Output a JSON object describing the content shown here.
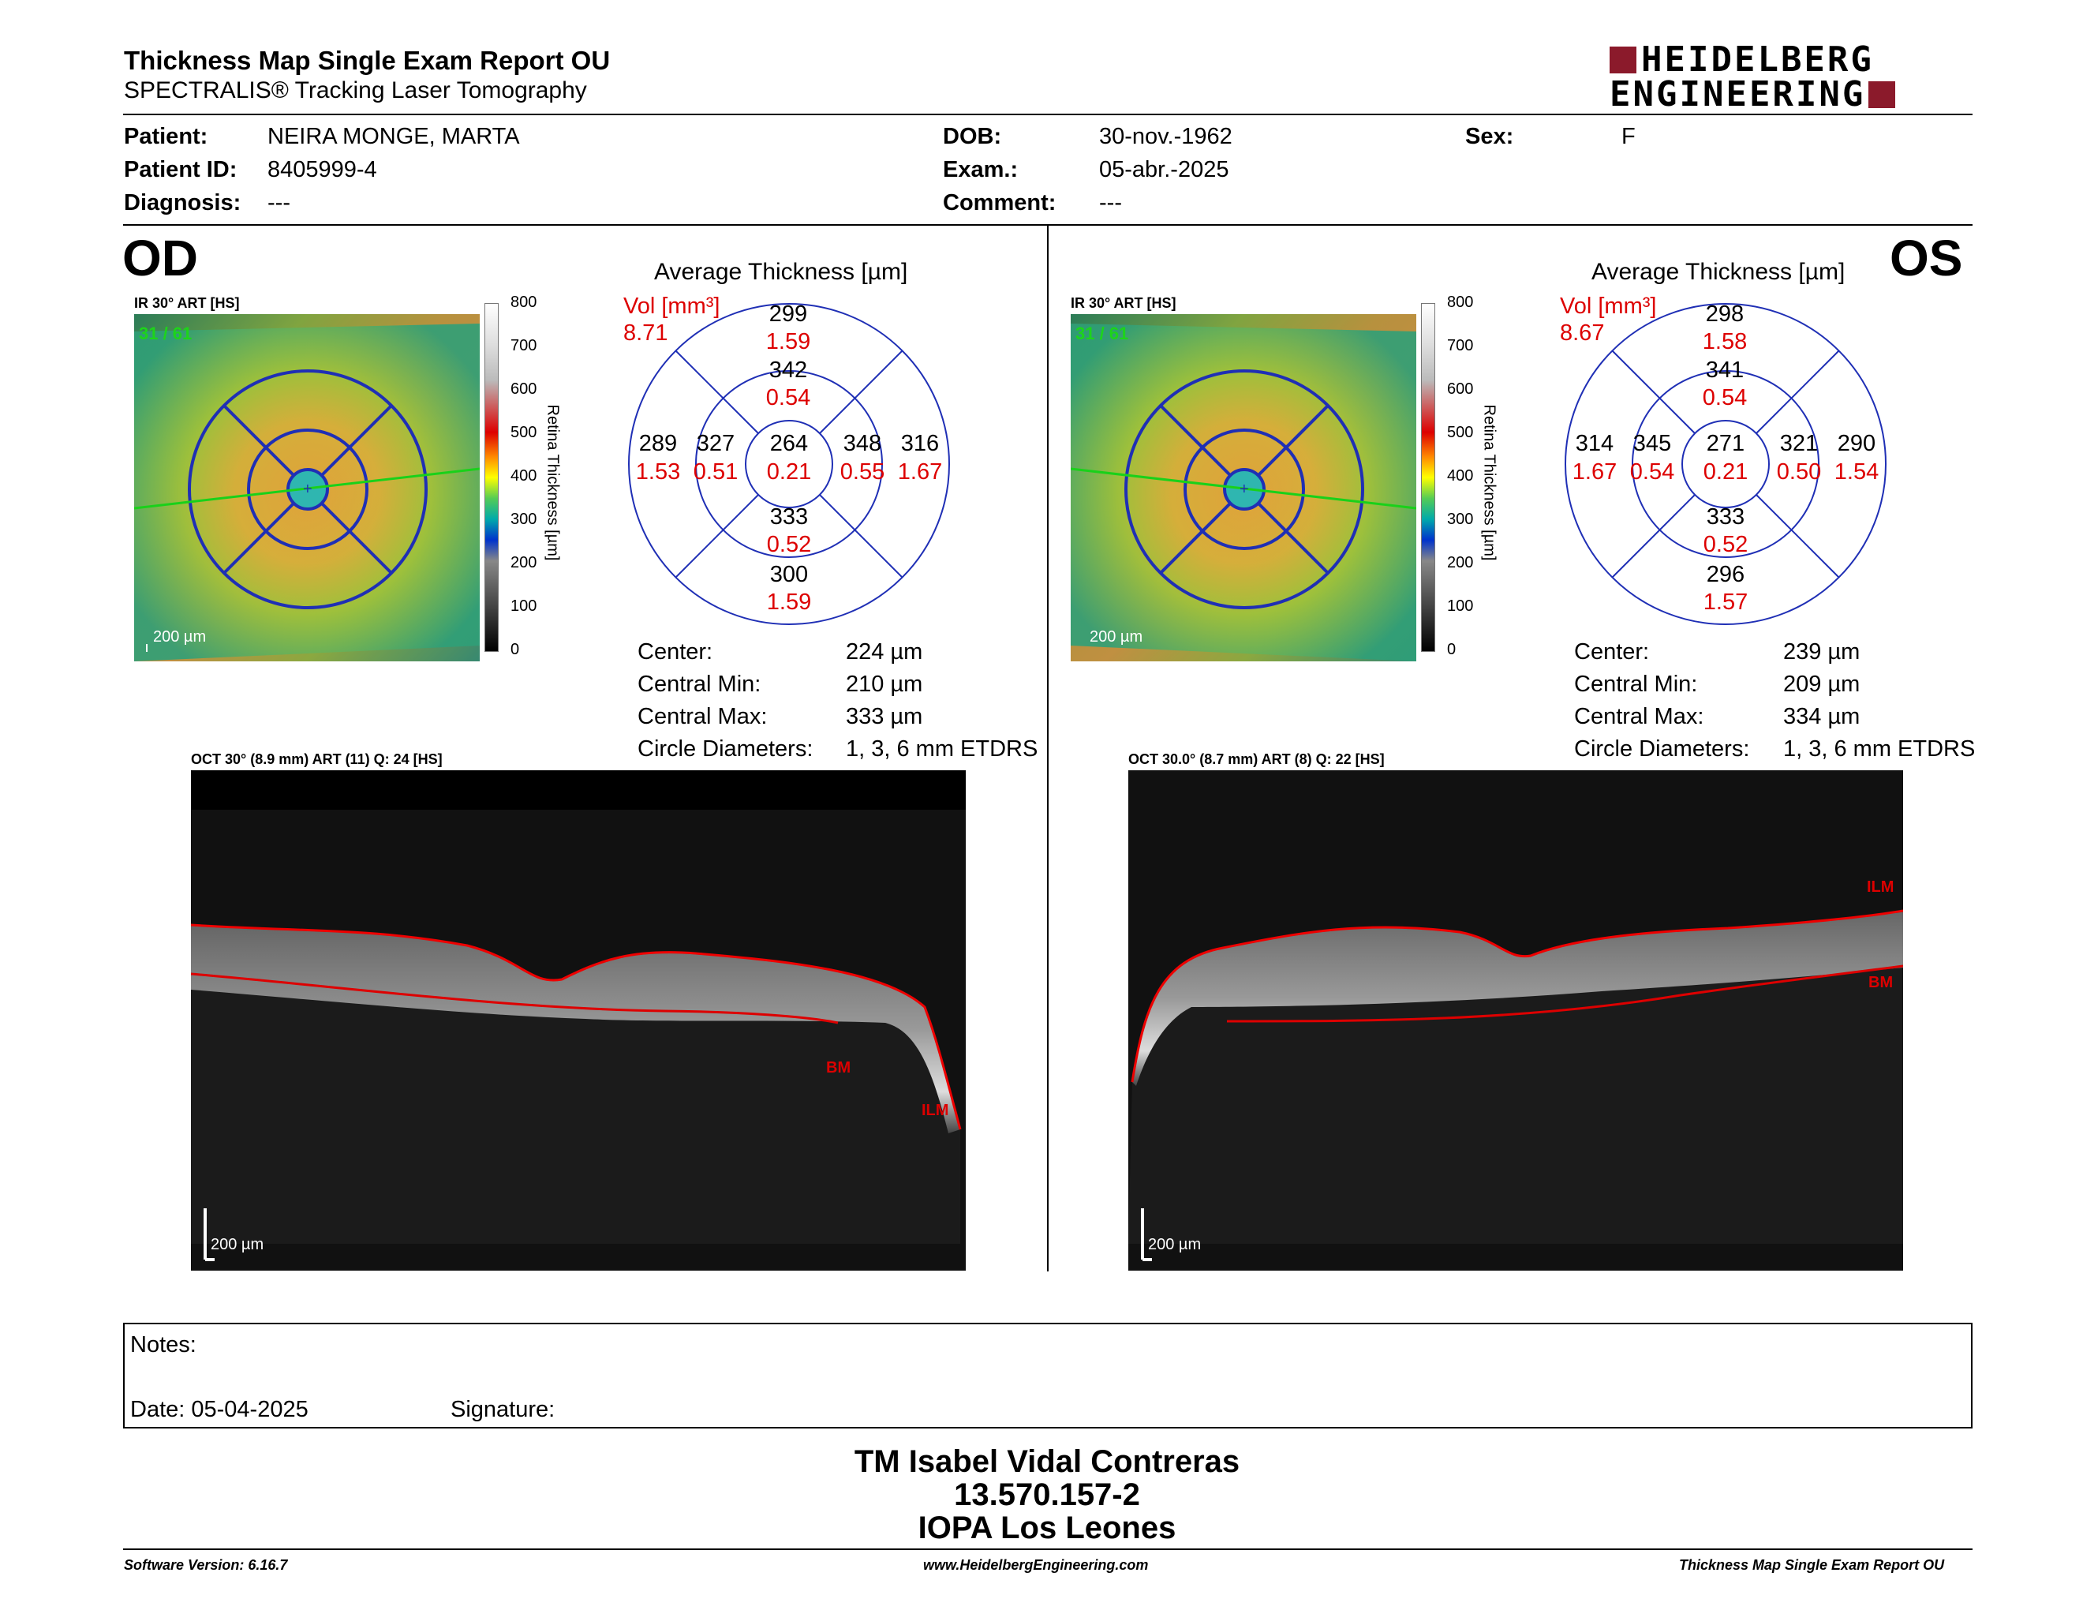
{
  "report": {
    "title": "Thickness Map Single Exam Report OU",
    "subtitle": "SPECTRALIS® Tracking Laser Tomography",
    "brand_line1": "HEIDELBERG",
    "brand_line2": "ENGINEERING",
    "brand_color": "#8b1a2b"
  },
  "patient": {
    "patient_label": "Patient:",
    "patient_value": "NEIRA MONGE, MARTA",
    "id_label": "Patient ID:",
    "id_value": "8405999-4",
    "diag_label": "Diagnosis:",
    "diag_value": "---",
    "dob_label": "DOB:",
    "dob_value": "30-nov.-1962",
    "exam_label": "Exam.:",
    "exam_value": "05-abr.-2025",
    "comment_label": "Comment:",
    "comment_value": "---",
    "sex_label": "Sex:",
    "sex_value": "F"
  },
  "od": {
    "eye": "OD",
    "ir_label": "IR 30° ART [HS]",
    "frame": "31 / 61",
    "scale": "200 µm",
    "avg_title": "Average Thickness [µm]",
    "vol_label": "Vol [mm³]",
    "vol_total": "8.71",
    "sectors": {
      "sup_outer": "299",
      "sup_outer_v": "1.59",
      "sup_inner": "342",
      "sup_inner_v": "0.54",
      "temp_outer": "289",
      "temp_outer_v": "1.53",
      "temp_inner": "327",
      "temp_inner_v": "0.51",
      "center": "264",
      "center_v": "0.21",
      "nas_inner": "348",
      "nas_inner_v": "0.55",
      "nas_outer": "316",
      "nas_outer_v": "1.67",
      "inf_inner": "333",
      "inf_inner_v": "0.52",
      "inf_outer": "300",
      "inf_outer_v": "1.59"
    },
    "stats": {
      "center_label": "Center:",
      "center_value": "224 µm",
      "min_label": "Central Min:",
      "min_value": "210 µm",
      "max_label": "Central Max:",
      "max_value": "333 µm",
      "diam_label": "Circle Diameters:",
      "diam_value": "1, 3, 6 mm ETDRS"
    },
    "oct_label": "OCT 30° (8.9 mm) ART (11) Q: 24 [HS]",
    "oct_scale": "200 µm",
    "ilm": "ILM",
    "bm": "BM"
  },
  "os": {
    "eye": "OS",
    "ir_label": "IR 30° ART [HS]",
    "frame": "31 / 61",
    "scale": "200 µm",
    "avg_title": "Average Thickness [µm]",
    "vol_label": "Vol [mm³]",
    "vol_total": "8.67",
    "sectors": {
      "sup_outer": "298",
      "sup_outer_v": "1.58",
      "sup_inner": "341",
      "sup_inner_v": "0.54",
      "temp_outer": "290",
      "temp_outer_v": "1.54",
      "temp_inner": "321",
      "temp_inner_v": "0.50",
      "center": "271",
      "center_v": "0.21",
      "nas_inner": "345",
      "nas_inner_v": "0.54",
      "nas_outer": "314",
      "nas_outer_v": "1.67",
      "inf_inner": "333",
      "inf_inner_v": "0.52",
      "inf_outer": "296",
      "inf_outer_v": "1.57"
    },
    "stats": {
      "center_label": "Center:",
      "center_value": "239 µm",
      "min_label": "Central Min:",
      "min_value": "209 µm",
      "max_label": "Central Max:",
      "max_value": "334 µm",
      "diam_label": "Circle Diameters:",
      "diam_value": "1, 3, 6 mm ETDRS"
    },
    "oct_label": "OCT 30.0° (8.7 mm) ART (8) Q: 22 [HS]",
    "oct_scale": "200 µm",
    "ilm": "ILM",
    "bm": "BM"
  },
  "colorbar": {
    "ticks": [
      "800",
      "700",
      "600",
      "500",
      "400",
      "300",
      "200",
      "100",
      "0"
    ],
    "title": "Retina Thickness [µm]"
  },
  "notes": {
    "notes_label": "Notes:",
    "date_label": "Date: 05-04-2025",
    "signature_label": "Signature:"
  },
  "signatory": {
    "name": "TM Isabel Vidal Contreras",
    "rut": "13.570.157-2",
    "org": "IOPA Los Leones"
  },
  "footer": {
    "software": "Software Version: 6.16.7",
    "url": "www.HeidelbergEngineering.com",
    "report": "Thickness Map Single Exam Report OU"
  }
}
